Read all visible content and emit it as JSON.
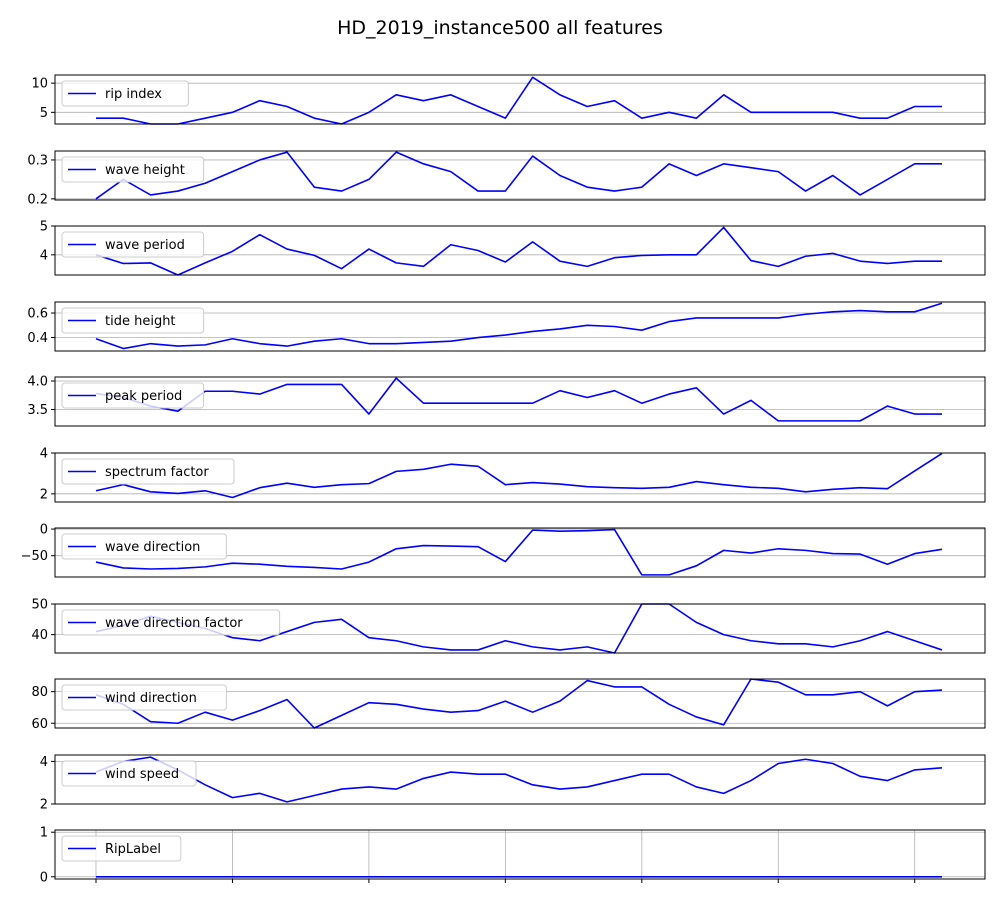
{
  "chart_data": {
    "type": "line",
    "title": "HD_2019_instance500 all features",
    "line_color": "#0000ff",
    "grid": "y",
    "legend_placement": "upper-left",
    "x_points": 32,
    "panels": [
      {
        "name": "rip index",
        "ylim": [
          3,
          11.4
        ],
        "yticks": [
          5,
          10
        ],
        "values": [
          4,
          4,
          3,
          3,
          4,
          5,
          7,
          6,
          4,
          3,
          5,
          8,
          7,
          8,
          6,
          4,
          11,
          8,
          6,
          7,
          4,
          5,
          4,
          8,
          5,
          5,
          5,
          5,
          4,
          4,
          6,
          6
        ]
      },
      {
        "name": "wave height",
        "ylim": [
          0.197,
          0.323
        ],
        "yticks": [
          0.2,
          0.3
        ],
        "yticklabels": [
          "0.2",
          "0.3"
        ],
        "values": [
          0.2,
          0.25,
          0.21,
          0.22,
          0.24,
          0.27,
          0.3,
          0.32,
          0.23,
          0.22,
          0.25,
          0.32,
          0.29,
          0.27,
          0.22,
          0.22,
          0.31,
          0.26,
          0.23,
          0.22,
          0.23,
          0.29,
          0.26,
          0.29,
          0.28,
          0.27,
          0.22,
          0.26,
          0.21,
          0.25,
          0.29,
          0.29
        ]
      },
      {
        "name": "wave period",
        "ylim": [
          3.3,
          5.0
        ],
        "yticks": [
          4,
          5
        ],
        "values": [
          4.0,
          3.7,
          3.72,
          3.3,
          3.72,
          4.12,
          4.7,
          4.2,
          3.98,
          3.52,
          4.2,
          3.72,
          3.6,
          4.35,
          4.15,
          3.75,
          4.45,
          3.78,
          3.6,
          3.9,
          3.98,
          4.0,
          4.0,
          4.95,
          3.8,
          3.6,
          3.95,
          4.05,
          3.78,
          3.7,
          3.78,
          3.78
        ]
      },
      {
        "name": "tide height",
        "ylim": [
          0.29,
          0.69
        ],
        "yticks": [
          0.4,
          0.6
        ],
        "yticklabels": [
          "0.4",
          "0.6"
        ],
        "values": [
          0.39,
          0.31,
          0.35,
          0.33,
          0.34,
          0.39,
          0.35,
          0.33,
          0.37,
          0.39,
          0.35,
          0.35,
          0.36,
          0.37,
          0.4,
          0.42,
          0.45,
          0.47,
          0.5,
          0.49,
          0.46,
          0.53,
          0.56,
          0.56,
          0.56,
          0.56,
          0.59,
          0.61,
          0.62,
          0.61,
          0.61,
          0.68
        ]
      },
      {
        "name": "peak period",
        "ylim": [
          3.21,
          4.07
        ],
        "yticks": [
          3.5,
          4.0
        ],
        "yticklabels": [
          "3.5",
          "4.0"
        ],
        "values": [
          3.78,
          3.71,
          3.56,
          3.47,
          3.82,
          3.82,
          3.77,
          3.94,
          3.94,
          3.94,
          3.42,
          4.05,
          3.61,
          3.61,
          3.61,
          3.61,
          3.61,
          3.83,
          3.71,
          3.83,
          3.61,
          3.77,
          3.88,
          3.42,
          3.66,
          3.3,
          3.3,
          3.3,
          3.3,
          3.56,
          3.42,
          3.42
        ]
      },
      {
        "name": "spectrum factor",
        "ylim": [
          1.6,
          4.0
        ],
        "yticks": [
          2,
          4
        ],
        "values": [
          2.15,
          2.45,
          2.1,
          2.02,
          2.15,
          1.82,
          2.3,
          2.52,
          2.32,
          2.45,
          2.5,
          3.1,
          3.2,
          3.45,
          3.35,
          2.45,
          2.55,
          2.48,
          2.35,
          2.3,
          2.27,
          2.32,
          2.6,
          2.45,
          2.32,
          2.27,
          2.1,
          2.22,
          2.3,
          2.25,
          3.12,
          3.98
        ]
      },
      {
        "name": "wave direction",
        "ylim": [
          -90,
          2
        ],
        "yticks": [
          -50,
          0
        ],
        "yticklabels": [
          "−50",
          "0"
        ],
        "values": [
          -62,
          -73,
          -75,
          -74,
          -71,
          -64,
          -66,
          -70,
          -72,
          -75,
          -62,
          -37,
          -31,
          -32,
          -33,
          -61,
          -2,
          -4,
          -3,
          -1,
          -86,
          -86,
          -69,
          -40,
          -45,
          -37,
          -40,
          -46,
          -47,
          -66,
          -46,
          -38
        ]
      },
      {
        "name": "wave direction factor",
        "ylim": [
          34,
          50
        ],
        "yticks": [
          40,
          50
        ],
        "values": [
          41,
          43,
          46,
          44,
          42,
          39,
          38,
          41,
          44,
          45,
          39,
          38,
          36,
          35,
          35,
          38,
          36,
          35,
          36,
          34,
          50,
          50,
          44,
          40,
          38,
          37,
          37,
          36,
          38,
          41,
          38,
          35
        ]
      },
      {
        "name": "wind direction",
        "ylim": [
          57,
          88
        ],
        "yticks": [
          60,
          80
        ],
        "values": [
          78,
          72,
          61,
          60,
          67,
          62,
          68,
          75,
          57,
          65,
          73,
          72,
          69,
          67,
          68,
          74,
          67,
          74,
          87,
          83,
          83,
          72,
          64,
          59,
          88,
          86,
          78,
          78,
          80,
          71,
          80,
          81
        ]
      },
      {
        "name": "wind speed",
        "ylim": [
          2.0,
          4.3
        ],
        "yticks": [
          2,
          4
        ],
        "values": [
          3.5,
          4.0,
          4.2,
          3.6,
          2.9,
          2.3,
          2.5,
          2.1,
          2.4,
          2.7,
          2.8,
          2.7,
          3.2,
          3.5,
          3.4,
          3.4,
          2.9,
          2.7,
          2.8,
          3.1,
          3.4,
          3.4,
          2.8,
          2.5,
          3.1,
          3.9,
          4.1,
          3.9,
          3.3,
          3.1,
          3.6,
          3.7
        ]
      },
      {
        "name": "RipLabel",
        "ylim": [
          -0.05,
          1.05
        ],
        "yticks": [
          0,
          1
        ],
        "values": [
          0,
          0,
          0,
          0,
          0,
          0,
          0,
          0,
          0,
          0,
          0,
          0,
          0,
          0,
          0,
          0,
          0,
          0,
          0,
          0,
          0,
          0,
          0,
          0,
          0,
          0,
          0,
          0,
          0,
          0,
          0,
          0
        ]
      }
    ]
  }
}
